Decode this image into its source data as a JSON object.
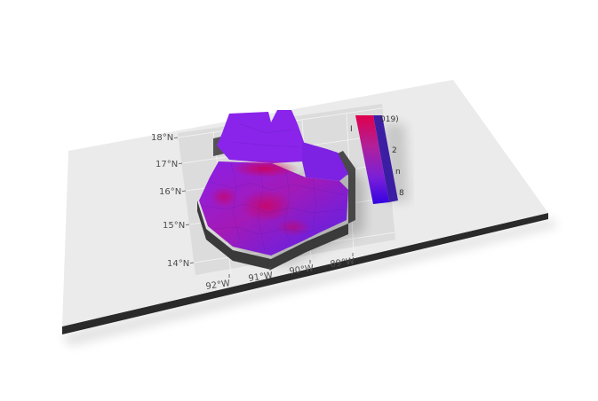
{
  "map": {
    "legend": {
      "title_fragment_left": "I",
      "title_fragment_right": "019)",
      "tick_fragments": [
        "2",
        "n",
        "8"
      ],
      "gradient_colors": [
        "#e0004c",
        "#b0209a",
        "#7a20d8",
        "#3300e0"
      ]
    },
    "lat_ticks": [
      "18°N",
      "17°N",
      "16°N",
      "15°N",
      "14°N"
    ],
    "lon_ticks": [
      "92°W",
      "91°W",
      "90°W",
      "89°W"
    ],
    "colors": {
      "plate_top": "#ebebeb",
      "plate_edge": "#2a2a2a",
      "panel": "#dadada",
      "extrusion_side": "#3a3a3a",
      "fill_high": "#d4004f",
      "fill_mid": "#9a1ec8",
      "fill_low": "#6a1fe0"
    }
  }
}
